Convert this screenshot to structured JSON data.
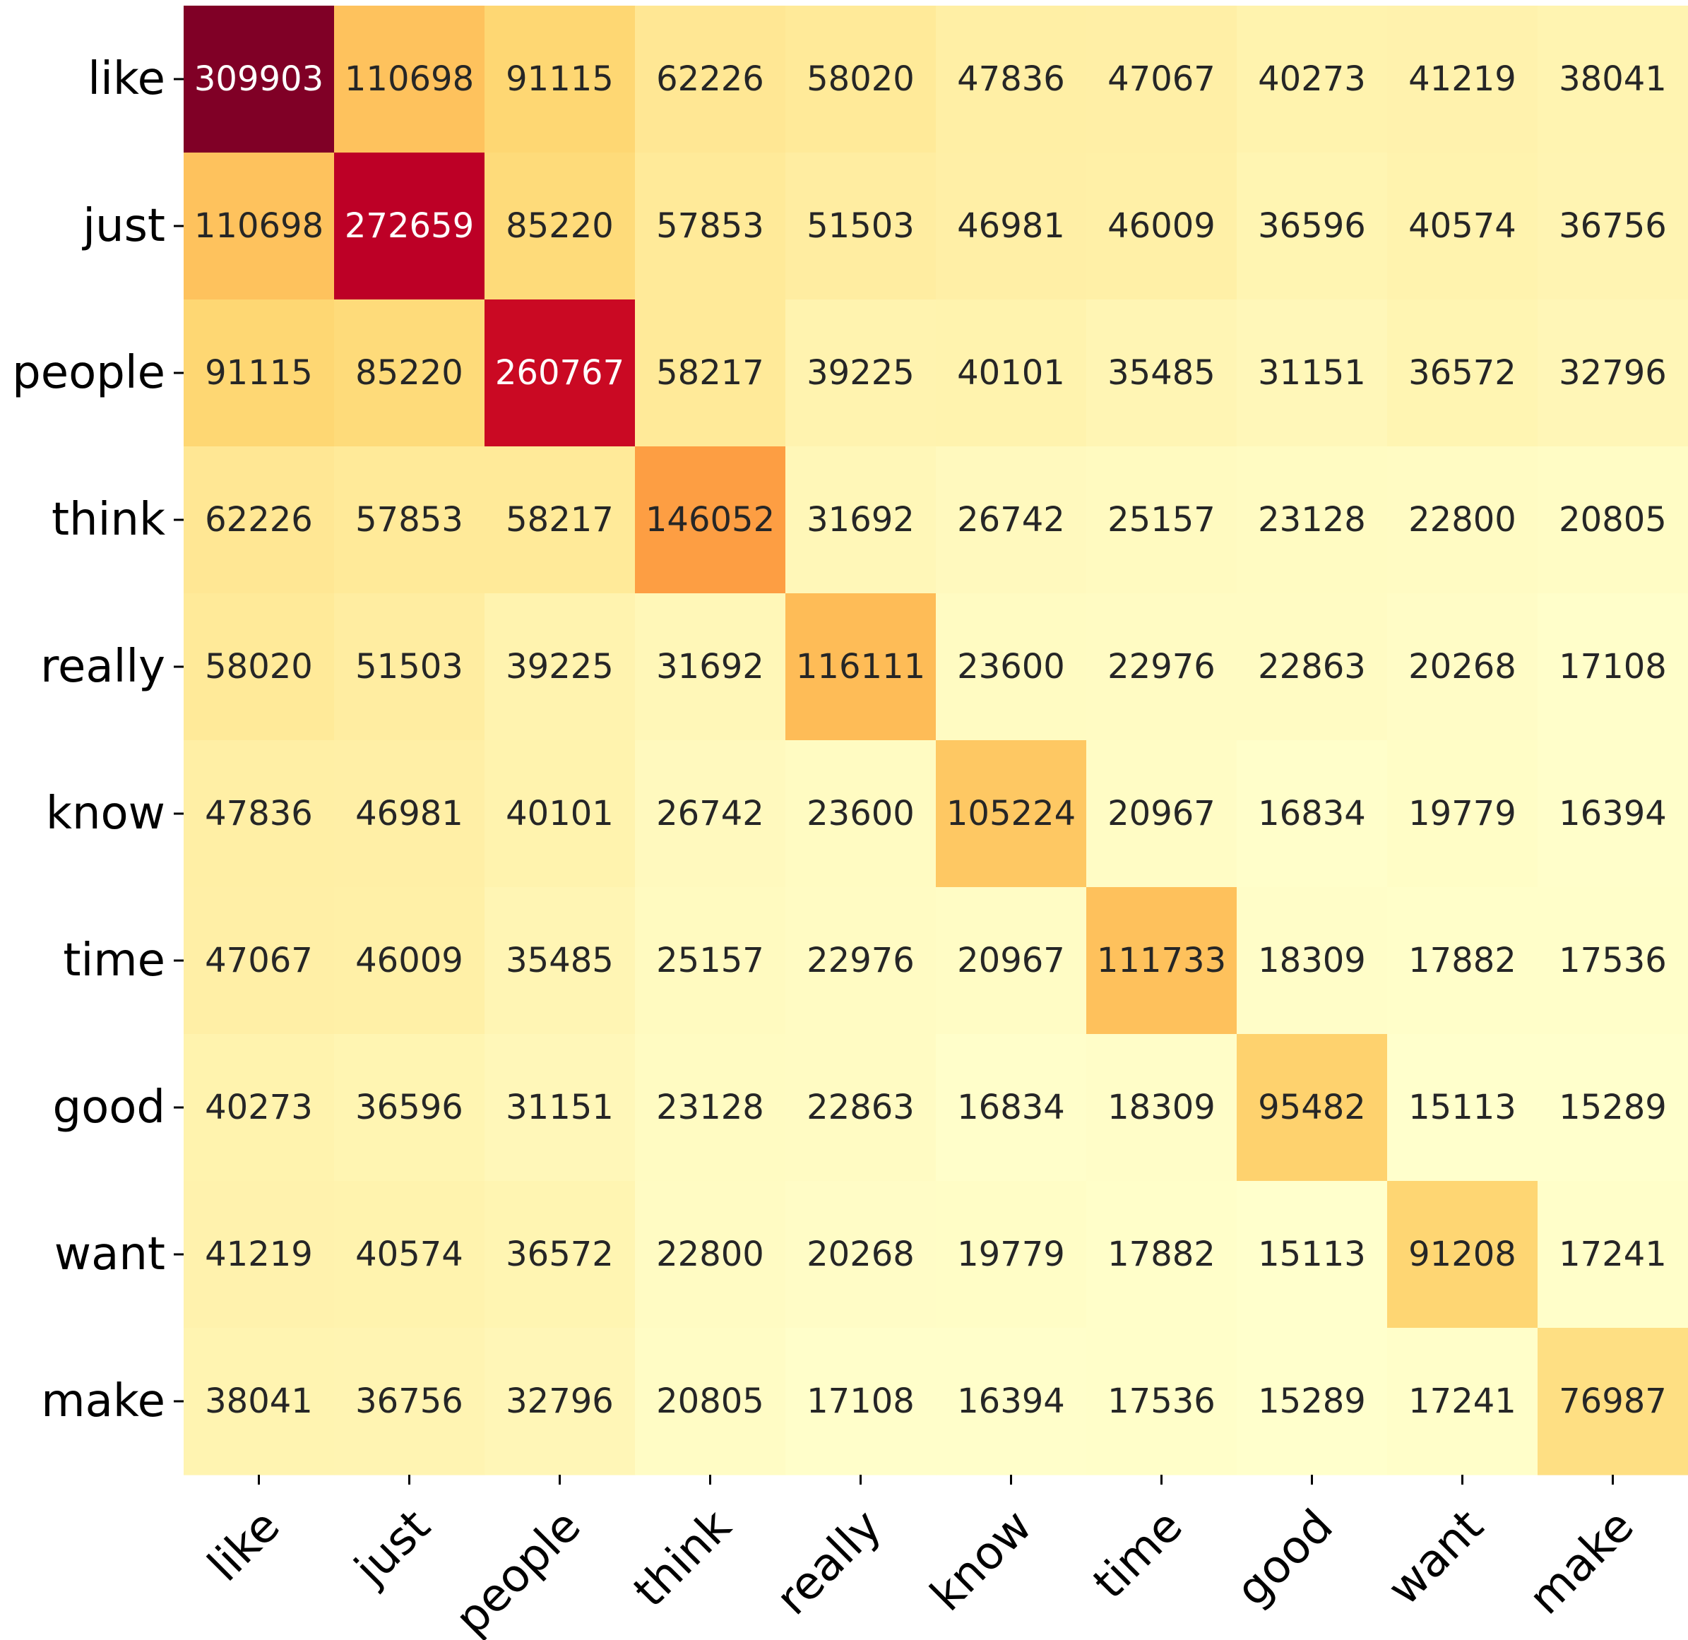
{
  "chart_data": {
    "type": "heatmap",
    "title": "",
    "xlabel": "",
    "ylabel": "",
    "x_categories": [
      "like",
      "just",
      "people",
      "think",
      "really",
      "know",
      "time",
      "good",
      "want",
      "make"
    ],
    "y_categories": [
      "like",
      "just",
      "people",
      "think",
      "really",
      "know",
      "time",
      "good",
      "want",
      "make"
    ],
    "values": [
      [
        309903,
        110698,
        91115,
        62226,
        58020,
        47836,
        47067,
        40273,
        41219,
        38041
      ],
      [
        110698,
        272659,
        85220,
        57853,
        51503,
        46981,
        46009,
        36596,
        40574,
        36756
      ],
      [
        91115,
        85220,
        260767,
        58217,
        39225,
        40101,
        35485,
        31151,
        36572,
        32796
      ],
      [
        62226,
        57853,
        58217,
        146052,
        31692,
        26742,
        25157,
        23128,
        22800,
        20805
      ],
      [
        58020,
        51503,
        39225,
        31692,
        116111,
        23600,
        22976,
        22863,
        20268,
        17108
      ],
      [
        47836,
        46981,
        40101,
        26742,
        23600,
        105224,
        20967,
        16834,
        19779,
        16394
      ],
      [
        47067,
        46009,
        35485,
        25157,
        22976,
        20967,
        111733,
        18309,
        17882,
        17536
      ],
      [
        40273,
        36596,
        31151,
        23128,
        22863,
        16834,
        18309,
        95482,
        15113,
        15289
      ],
      [
        41219,
        40574,
        36572,
        22800,
        20268,
        19779,
        17882,
        15113,
        91208,
        17241
      ],
      [
        38041,
        36756,
        32796,
        20805,
        17108,
        16394,
        17536,
        15289,
        17241,
        76987
      ]
    ],
    "colormap": "YlOrRd",
    "annotated": true,
    "colorbar": false,
    "x_tick_rotation": 45
  }
}
